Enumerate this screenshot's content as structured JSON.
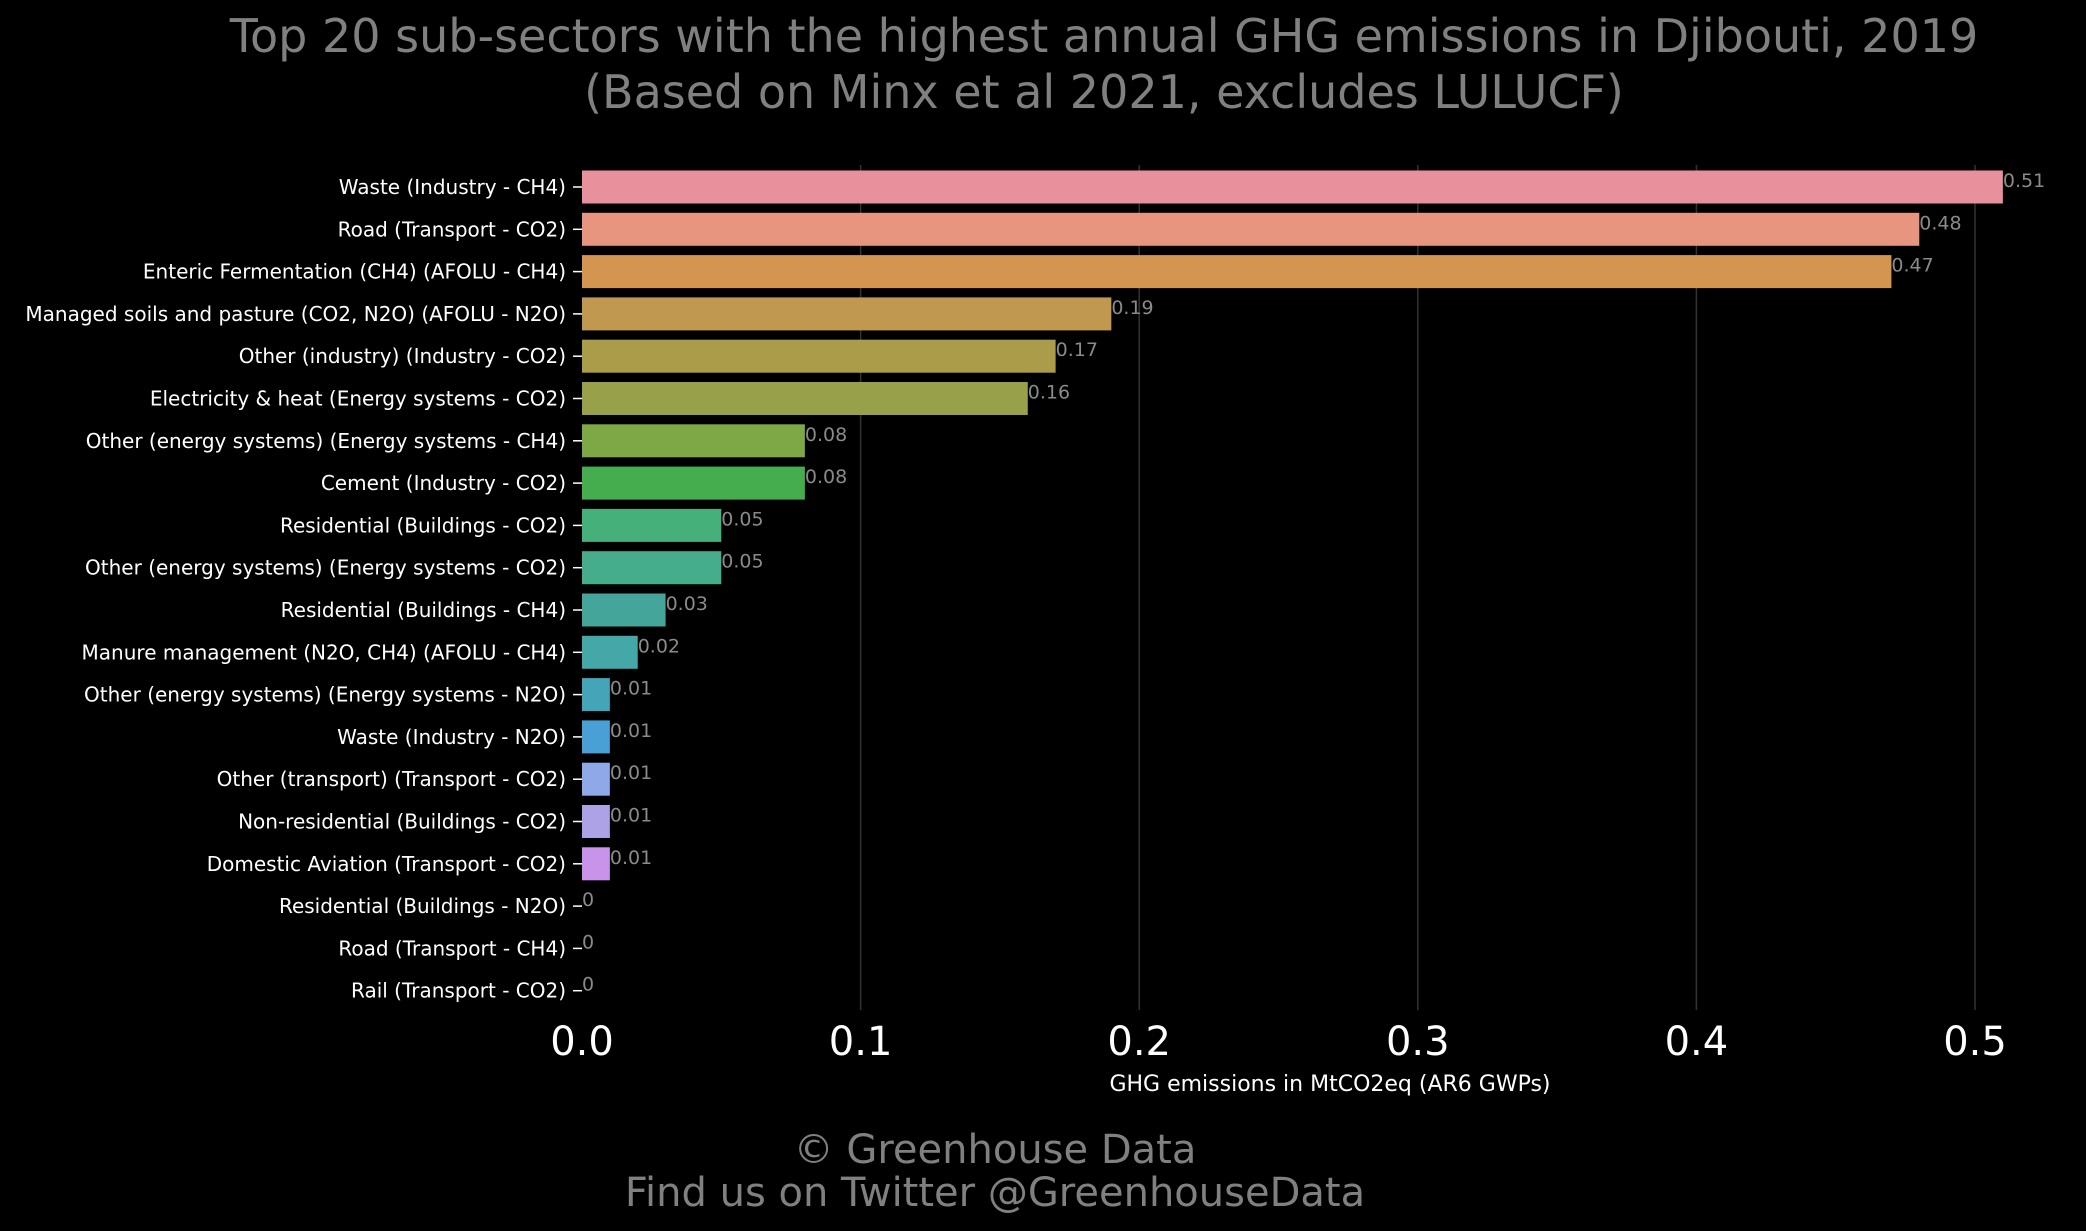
{
  "chart_data": {
    "type": "bar",
    "orientation": "horizontal",
    "title": "Top 20 sub-sectors with the highest annual GHG emissions in Djibouti, 2019",
    "subtitle": "(Based on Minx et al 2021, excludes LULUCF)",
    "xlabel": "GHG emissions in MtCO2eq (AR6 GWPs)",
    "ylabel": "",
    "xlim": [
      0,
      0.52
    ],
    "xticks": [
      0.0,
      0.1,
      0.2,
      0.3,
      0.4,
      0.5
    ],
    "xtick_labels": [
      "0.0",
      "0.1",
      "0.2",
      "0.3",
      "0.4",
      "0.5"
    ],
    "grid": "vertical",
    "categories": [
      "Waste (Industry - CH4)",
      "Road (Transport - CO2)",
      "Enteric Fermentation (CH4) (AFOLU - CH4)",
      "Managed soils and pasture (CO2, N2O) (AFOLU - N2O)",
      "Other (industry) (Industry - CO2)",
      "Electricity & heat (Energy systems - CO2)",
      "Other (energy systems) (Energy systems - CH4)",
      "Cement (Industry - CO2)",
      "Residential (Buildings - CO2)",
      "Other (energy systems) (Energy systems - CO2)",
      "Residential (Buildings - CH4)",
      "Manure management (N2O, CH4) (AFOLU - CH4)",
      "Other (energy systems) (Energy systems - N2O)",
      "Waste (Industry - N2O)",
      "Other (transport) (Transport - CO2)",
      "Non-residential (Buildings - CO2)",
      "Domestic Aviation (Transport - CO2)",
      "Residential (Buildings - N2O)",
      "Road (Transport - CH4)",
      "Rail  (Transport - CO2)"
    ],
    "values": [
      0.51,
      0.48,
      0.47,
      0.19,
      0.17,
      0.16,
      0.08,
      0.08,
      0.05,
      0.05,
      0.03,
      0.02,
      0.01,
      0.01,
      0.01,
      0.01,
      0.01,
      0,
      0,
      0
    ],
    "value_labels": [
      "0.51",
      "0.48",
      "0.47",
      "0.19",
      "0.17",
      "0.16",
      "0.08",
      "0.08",
      "0.05",
      "0.05",
      "0.03",
      "0.02",
      "0.01",
      "0.01",
      "0.01",
      "0.01",
      "0.01",
      "0",
      "0",
      "0"
    ],
    "colors": [
      "#e8909b",
      "#e89580",
      "#d49550",
      "#c09850",
      "#ab9c4a",
      "#98a04a",
      "#7ea845",
      "#45ad4e",
      "#45b07a",
      "#45ac8c",
      "#44a69a",
      "#45a8a8",
      "#44a5b8",
      "#48a0d5",
      "#8ea8e8",
      "#aea2e6",
      "#c893e8",
      "#e08ee0",
      "#e88ec8",
      "#e890b0"
    ]
  },
  "footer": {
    "copyright": "© Greenhouse Data",
    "twitter": "Find us on Twitter @GreenhouseData"
  }
}
